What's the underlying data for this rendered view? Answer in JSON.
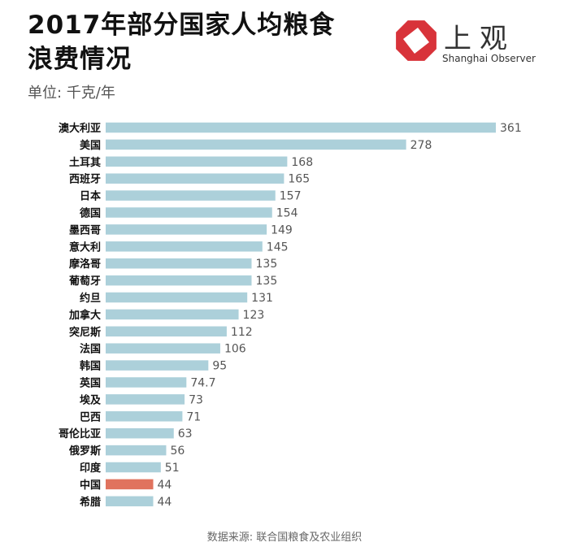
{
  "header": {
    "title_line1": "2017年部分国家人均粮食",
    "title_line2": "浪费情况",
    "unit": "单位: 千克/年"
  },
  "logo": {
    "name_cn": "上观",
    "name_en": "Shanghai Observer",
    "color": "#d8333a"
  },
  "footer": {
    "source": "数据来源: 联合国粮食及农业组织"
  },
  "colors": {
    "bar": "#acd0da",
    "highlight": "#e0735e",
    "label": "#111111",
    "value": "#555555"
  },
  "chart_data": {
    "type": "bar",
    "orientation": "horizontal",
    "title": "2017年部分国家人均粮食浪费情况",
    "unit": "千克/年",
    "highlight": "中国",
    "categories": [
      "澳大利亚",
      "美国",
      "土耳其",
      "西班牙",
      "日本",
      "德国",
      "墨西哥",
      "意大利",
      "摩洛哥",
      "葡萄牙",
      "约旦",
      "加拿大",
      "突尼斯",
      "法国",
      "韩国",
      "英国",
      "埃及",
      "巴西",
      "哥伦比亚",
      "俄罗斯",
      "印度",
      "中国",
      "希腊"
    ],
    "value_labels": [
      "361",
      "278",
      "168",
      "165",
      "157",
      "154",
      "149",
      "145",
      "135",
      "135",
      "131",
      "123",
      "112",
      "106",
      "95",
      "74.7",
      "73",
      "71",
      "63",
      "56",
      "51",
      "44",
      "44"
    ],
    "values": [
      361,
      278,
      168,
      165,
      157,
      154,
      149,
      145,
      135,
      135,
      131,
      123,
      112,
      106,
      95,
      74.7,
      73,
      71,
      63,
      56,
      51,
      44,
      44
    ],
    "xlim": [
      0,
      361
    ]
  }
}
